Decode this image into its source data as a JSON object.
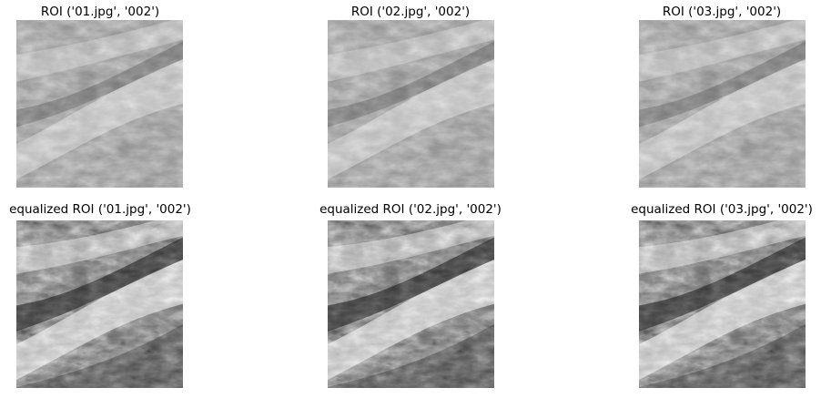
{
  "figure": {
    "rows": [
      {
        "row_id": "roi",
        "panels": [
          {
            "title": "ROI ('01.jpg', '002')",
            "image": "grayscale-fingerprint-roi",
            "equalized": false
          },
          {
            "title": "ROI ('02.jpg', '002')",
            "image": "grayscale-fingerprint-roi",
            "equalized": false
          },
          {
            "title": "ROI ('03.jpg', '002')",
            "image": "grayscale-fingerprint-roi",
            "equalized": false
          }
        ]
      },
      {
        "row_id": "equalized",
        "panels": [
          {
            "title": "equalized ROI ('01.jpg', '002')",
            "image": "grayscale-fingerprint-roi-equalized",
            "equalized": true
          },
          {
            "title": "equalized ROI ('02.jpg', '002')",
            "image": "grayscale-fingerprint-roi-equalized",
            "equalized": true
          },
          {
            "title": "equalized ROI ('03.jpg', '002')",
            "image": "grayscale-fingerprint-roi-equalized",
            "equalized": true
          }
        ]
      }
    ]
  }
}
